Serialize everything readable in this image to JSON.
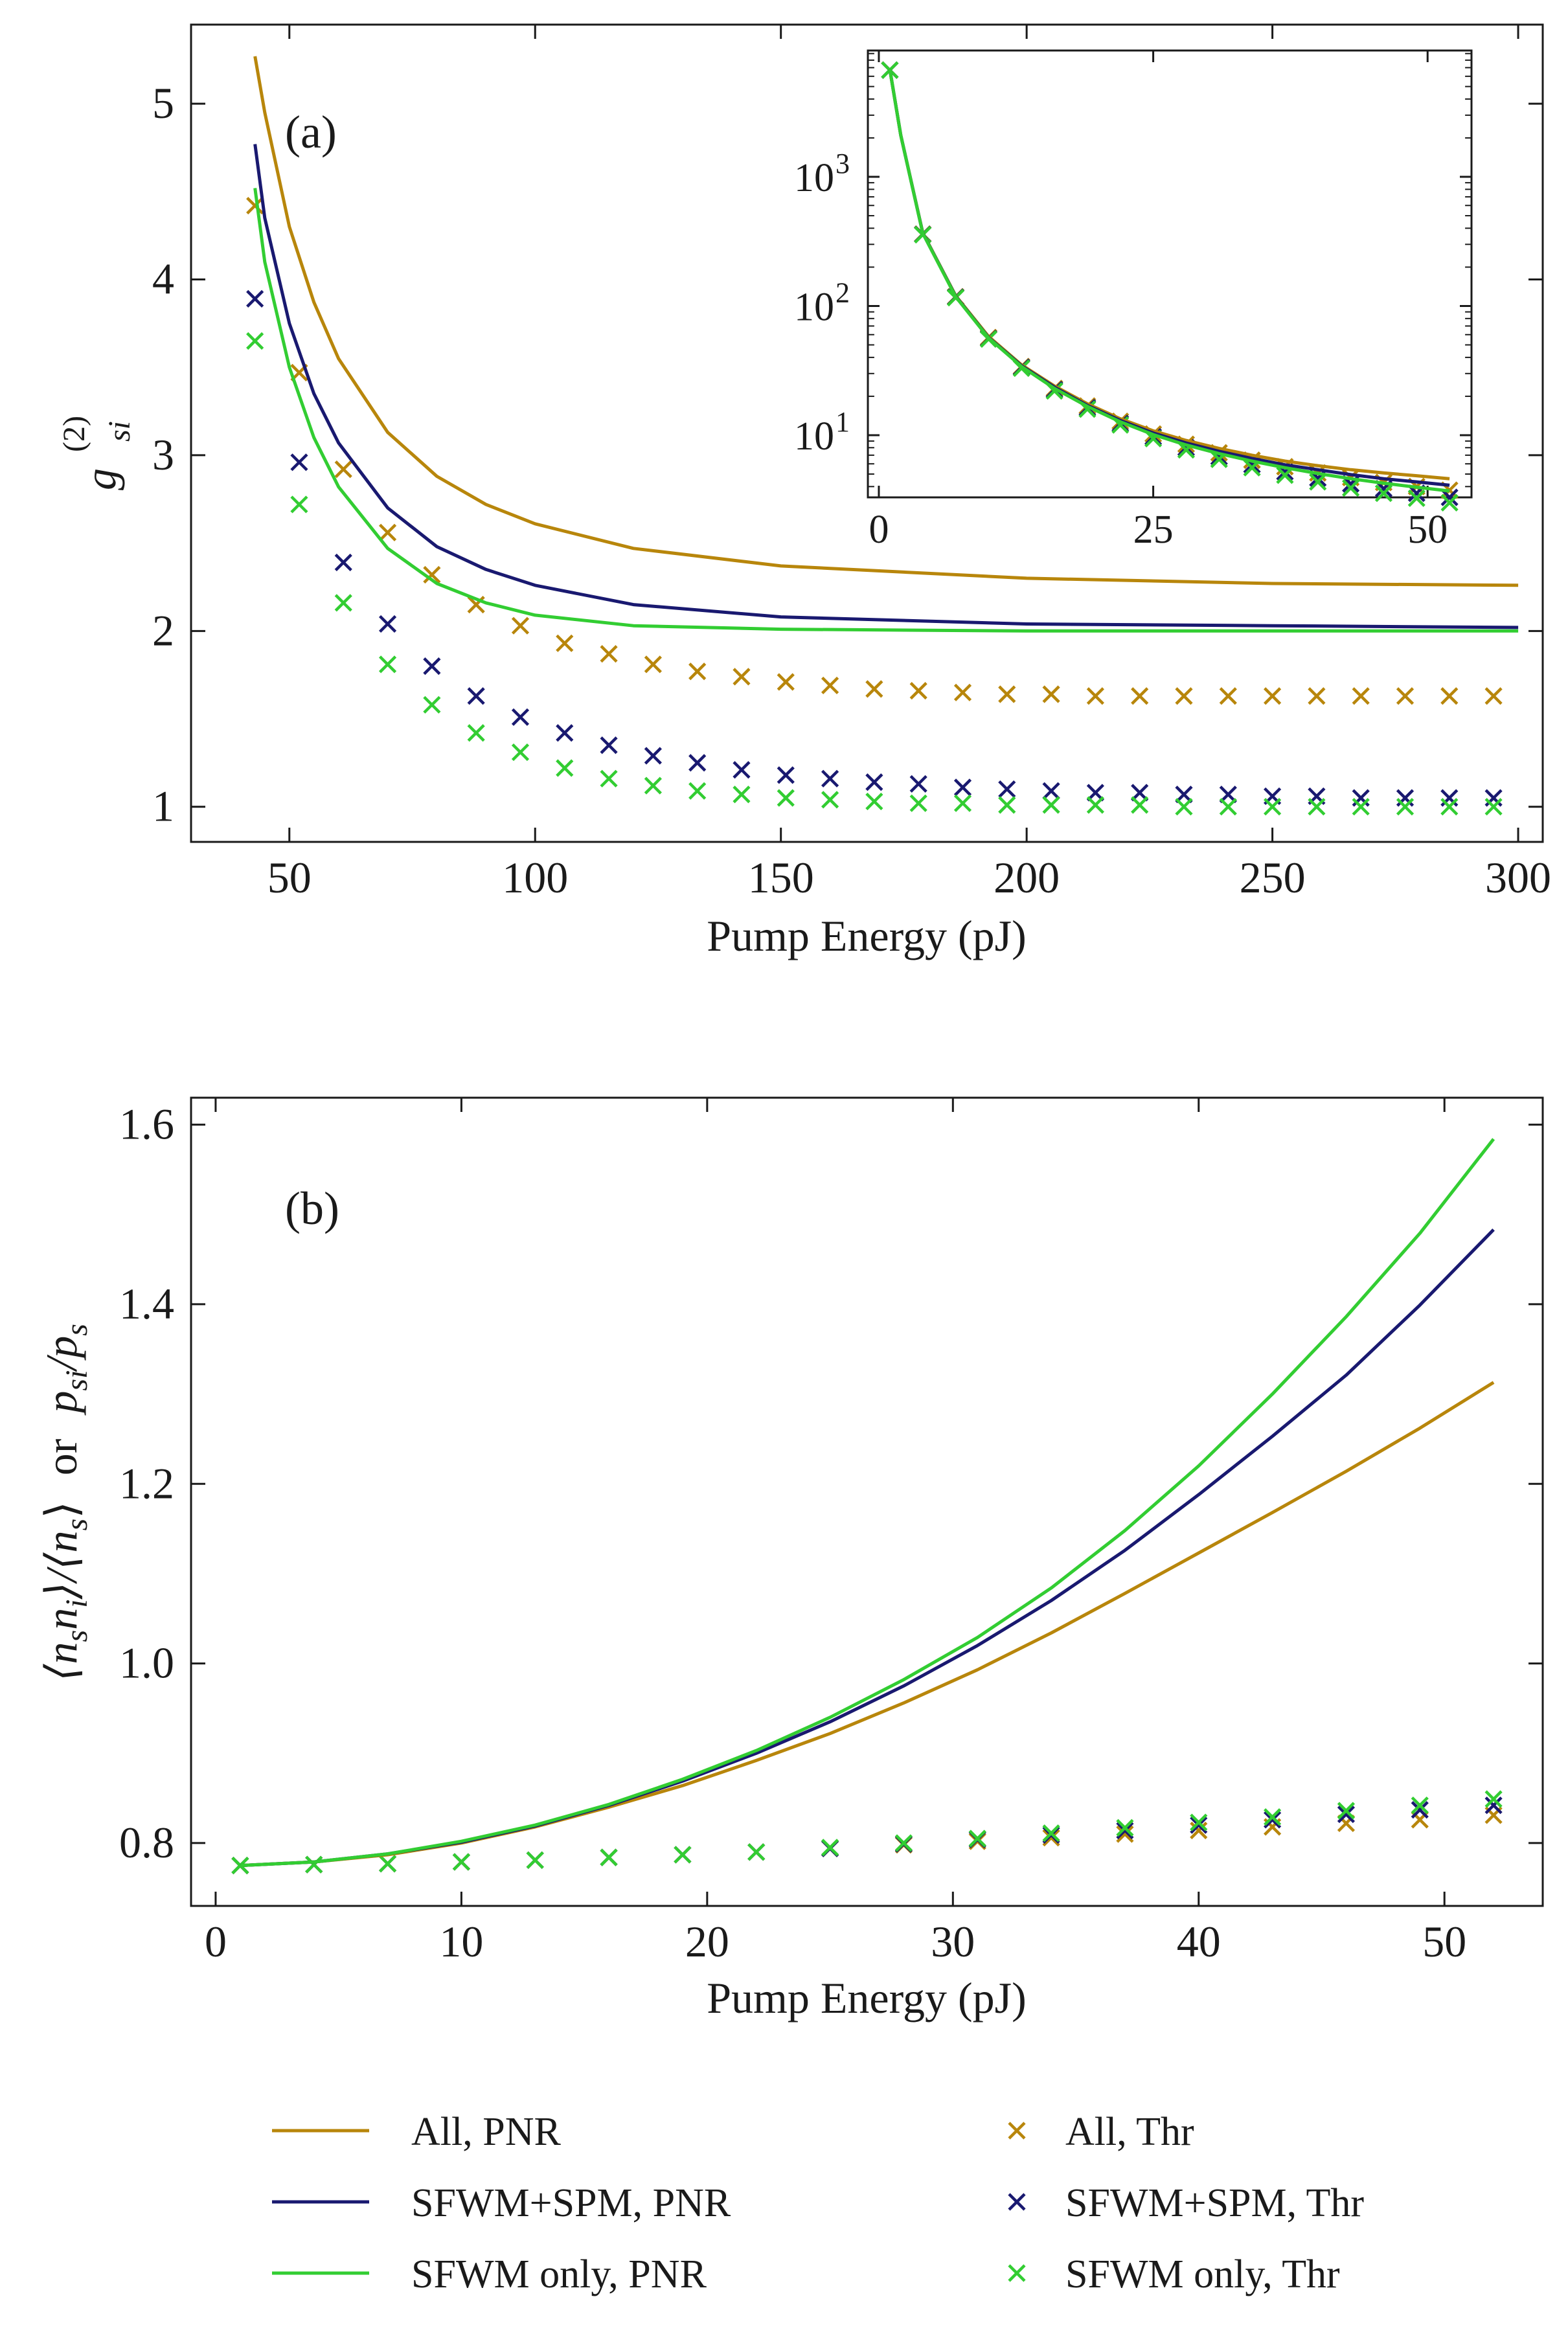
{
  "colors": {
    "all": "#b8860b",
    "sfwm_spm": "#191970",
    "sfwm_only": "#32cd32",
    "axis": "#1a1a1a"
  },
  "chart_data": [
    {
      "id": "a",
      "type": "line",
      "panel_label": "(a)",
      "xlabel": "Pump Energy (pJ)",
      "ylabel": "g_si^(2)",
      "ylabel_main": "g",
      "ylabel_sub": "si",
      "ylabel_sup": "(2)",
      "xlim": [
        30,
        305
      ],
      "ylim": [
        0.8,
        5.45
      ],
      "xticks": [
        50,
        100,
        150,
        200,
        250,
        300
      ],
      "yticks": [
        1,
        2,
        3,
        4,
        5
      ],
      "grid": false,
      "series": [
        {
          "name": "All, PNR",
          "kind": "line",
          "color_key": "all",
          "x": [
            43,
            45,
            50,
            55,
            60,
            70,
            80,
            90,
            100,
            120,
            150,
            200,
            250,
            300
          ],
          "y": [
            5.27,
            4.95,
            4.3,
            3.87,
            3.55,
            3.13,
            2.88,
            2.72,
            2.61,
            2.47,
            2.37,
            2.3,
            2.27,
            2.26
          ]
        },
        {
          "name": "SFWM+SPM, PNR",
          "kind": "line",
          "color_key": "sfwm_spm",
          "x": [
            43,
            45,
            50,
            55,
            60,
            70,
            80,
            90,
            100,
            120,
            150,
            200,
            250,
            300
          ],
          "y": [
            4.77,
            4.35,
            3.75,
            3.35,
            3.07,
            2.7,
            2.48,
            2.35,
            2.26,
            2.15,
            2.08,
            2.04,
            2.03,
            2.02
          ]
        },
        {
          "name": "SFWM only, PNR",
          "kind": "line",
          "color_key": "sfwm_only",
          "x": [
            43,
            45,
            50,
            55,
            60,
            70,
            80,
            90,
            100,
            120,
            150,
            200,
            250,
            300
          ],
          "y": [
            4.52,
            4.1,
            3.5,
            3.1,
            2.82,
            2.47,
            2.27,
            2.16,
            2.09,
            2.03,
            2.01,
            2.0,
            2.0,
            2.0
          ]
        },
        {
          "name": "All, Thr",
          "kind": "marker",
          "color_key": "all",
          "x": [
            43,
            52,
            61,
            70,
            79,
            88,
            97,
            106,
            115,
            124,
            133,
            142,
            151,
            160,
            169,
            178,
            187,
            196,
            205,
            214,
            223,
            232,
            241,
            250,
            259,
            268,
            277,
            286,
            295
          ],
          "y": [
            4.42,
            3.47,
            2.92,
            2.56,
            2.32,
            2.15,
            2.03,
            1.93,
            1.87,
            1.81,
            1.77,
            1.74,
            1.71,
            1.69,
            1.67,
            1.66,
            1.65,
            1.64,
            1.64,
            1.63,
            1.63,
            1.63,
            1.63,
            1.63,
            1.63,
            1.63,
            1.63,
            1.63,
            1.63
          ]
        },
        {
          "name": "SFWM+SPM, Thr",
          "kind": "marker",
          "color_key": "sfwm_spm",
          "x": [
            43,
            52,
            61,
            70,
            79,
            88,
            97,
            106,
            115,
            124,
            133,
            142,
            151,
            160,
            169,
            178,
            187,
            196,
            205,
            214,
            223,
            232,
            241,
            250,
            259,
            268,
            277,
            286,
            295
          ],
          "y": [
            3.89,
            2.96,
            2.39,
            2.04,
            1.8,
            1.63,
            1.51,
            1.42,
            1.35,
            1.29,
            1.25,
            1.21,
            1.18,
            1.16,
            1.14,
            1.13,
            1.11,
            1.1,
            1.09,
            1.08,
            1.08,
            1.07,
            1.07,
            1.06,
            1.06,
            1.05,
            1.05,
            1.05,
            1.05
          ]
        },
        {
          "name": "SFWM only, Thr",
          "kind": "marker",
          "color_key": "sfwm_only",
          "x": [
            43,
            52,
            61,
            70,
            79,
            88,
            97,
            106,
            115,
            124,
            133,
            142,
            151,
            160,
            169,
            178,
            187,
            196,
            205,
            214,
            223,
            232,
            241,
            250,
            259,
            268,
            277,
            286,
            295
          ],
          "y": [
            3.65,
            2.72,
            2.16,
            1.81,
            1.58,
            1.42,
            1.31,
            1.22,
            1.16,
            1.12,
            1.09,
            1.07,
            1.05,
            1.04,
            1.03,
            1.02,
            1.02,
            1.01,
            1.01,
            1.01,
            1.01,
            1.0,
            1.0,
            1.0,
            1.0,
            1.0,
            1.0,
            1.0,
            1.0
          ]
        }
      ]
    },
    {
      "id": "a_inset",
      "type": "line",
      "yscale": "log",
      "xlim": [
        -1,
        54
      ],
      "ylim": [
        3.3,
        9500
      ],
      "xticks": [
        0,
        25,
        50
      ],
      "yticks": [
        10,
        100,
        1000
      ],
      "ytick_labels": [
        "10",
        "10",
        "10"
      ],
      "ytick_exponents": [
        "1",
        "2",
        "3"
      ],
      "series": [
        {
          "name": "All, PNR",
          "kind": "line",
          "color_key": "all",
          "x": [
            1,
            2,
            4,
            7,
            10,
            13,
            16,
            19,
            22,
            25,
            28,
            31,
            34,
            37,
            40,
            43,
            46,
            49,
            52
          ],
          "y": [
            6800,
            2100,
            370,
            120,
            58,
            35,
            24,
            17.5,
            13.4,
            10.8,
            9.1,
            7.9,
            7.0,
            6.3,
            5.8,
            5.4,
            5.1,
            4.85,
            4.6
          ]
        },
        {
          "name": "SFWM+SPM, PNR",
          "kind": "line",
          "color_key": "sfwm_spm",
          "x": [
            1,
            2,
            4,
            7,
            10,
            13,
            16,
            19,
            22,
            25,
            28,
            31,
            34,
            37,
            40,
            43,
            46,
            49,
            52
          ],
          "y": [
            6800,
            2100,
            368,
            119,
            57,
            34.5,
            23.5,
            17,
            13,
            10.4,
            8.7,
            7.5,
            6.6,
            5.9,
            5.4,
            4.95,
            4.6,
            4.35,
            4.1
          ]
        },
        {
          "name": "SFWM only, PNR",
          "kind": "line",
          "color_key": "sfwm_only",
          "x": [
            1,
            2,
            4,
            7,
            10,
            13,
            16,
            19,
            22,
            25,
            28,
            31,
            34,
            37,
            40,
            43,
            46,
            49,
            52
          ],
          "y": [
            6800,
            2100,
            366,
            118,
            56.5,
            34,
            23,
            16.7,
            12.7,
            10.1,
            8.4,
            7.2,
            6.3,
            5.6,
            5.05,
            4.6,
            4.25,
            3.95,
            3.7
          ]
        },
        {
          "name": "All, Thr",
          "kind": "marker",
          "color_key": "all",
          "x": [
            1,
            4,
            7,
            10,
            13,
            16,
            19,
            22,
            25,
            28,
            31,
            34,
            37,
            40,
            43,
            46,
            49,
            52
          ],
          "y": [
            6700,
            360,
            118,
            57,
            34,
            23,
            16.8,
            12.8,
            10.2,
            8.5,
            7.3,
            6.4,
            5.7,
            5.1,
            4.7,
            4.3,
            4.0,
            3.75
          ]
        },
        {
          "name": "SFWM+SPM, Thr",
          "kind": "marker",
          "color_key": "sfwm_spm",
          "x": [
            1,
            4,
            7,
            10,
            13,
            16,
            19,
            22,
            25,
            28,
            31,
            34,
            37,
            40,
            43,
            46,
            49,
            52
          ],
          "y": [
            6700,
            358,
            117,
            56,
            33.5,
            22.5,
            16.3,
            12.3,
            9.7,
            8.0,
            6.8,
            5.9,
            5.2,
            4.65,
            4.2,
            3.85,
            3.55,
            3.3
          ]
        },
        {
          "name": "SFWM only, Thr",
          "kind": "marker",
          "color_key": "sfwm_only",
          "x": [
            1,
            4,
            7,
            10,
            13,
            16,
            19,
            22,
            25,
            28,
            31,
            34,
            37,
            40,
            43,
            46,
            49,
            52
          ],
          "y": [
            6700,
            356,
            116,
            55.5,
            33,
            22,
            15.9,
            12.0,
            9.4,
            7.7,
            6.5,
            5.6,
            4.9,
            4.35,
            3.9,
            3.55,
            3.25,
            3.0
          ]
        }
      ]
    },
    {
      "id": "b",
      "type": "line",
      "panel_label": "(b)",
      "xlabel": "Pump Energy (pJ)",
      "ylabel": "⟨n_s n_i⟩/⟨n_s⟩ or p_si/p_s",
      "ylabel_left": "⟨n",
      "ylabel_sub1": "s",
      "ylabel_mid": "n",
      "ylabel_sub2": "i",
      "ylabel_rest": "⟩/⟨n",
      "ylabel_sub3": "s",
      "ylabel_close": "⟩",
      "ylabel_or": "or",
      "ylabel_p1": "p",
      "ylabel_psub1": "si",
      "ylabel_slash": "/p",
      "ylabel_psub2": "s",
      "xlim": [
        -1,
        54
      ],
      "ylim": [
        0.73,
        1.63
      ],
      "xticks": [
        0,
        10,
        20,
        30,
        40,
        50
      ],
      "yticks": [
        0.8,
        1.0,
        1.2,
        1.4,
        1.6
      ],
      "ytick_labels": [
        "0.8",
        "1.0",
        "1.2",
        "1.4",
        "1.6"
      ],
      "grid": false,
      "series": [
        {
          "name": "All, PNR",
          "kind": "line",
          "color_key": "all",
          "x": [
            1,
            4,
            7,
            10,
            13,
            16,
            19,
            22,
            25,
            28,
            31,
            34,
            37,
            40,
            43,
            46,
            49,
            52
          ],
          "y": [
            0.775,
            0.779,
            0.787,
            0.8,
            0.818,
            0.84,
            0.864,
            0.892,
            0.922,
            0.956,
            0.993,
            1.034,
            1.078,
            1.123,
            1.168,
            1.214,
            1.262,
            1.313
          ]
        },
        {
          "name": "SFWM+SPM, PNR",
          "kind": "line",
          "color_key": "sfwm_spm",
          "x": [
            1,
            4,
            7,
            10,
            13,
            16,
            19,
            22,
            25,
            28,
            31,
            34,
            37,
            40,
            43,
            46,
            49,
            52
          ],
          "y": [
            0.775,
            0.779,
            0.788,
            0.801,
            0.819,
            0.842,
            0.869,
            0.9,
            0.935,
            0.975,
            1.02,
            1.07,
            1.126,
            1.188,
            1.253,
            1.321,
            1.399,
            1.483
          ]
        },
        {
          "name": "SFWM only, PNR",
          "kind": "line",
          "color_key": "sfwm_only",
          "x": [
            1,
            4,
            7,
            10,
            13,
            16,
            19,
            22,
            25,
            28,
            31,
            34,
            37,
            40,
            43,
            46,
            49,
            52
          ],
          "y": [
            0.775,
            0.779,
            0.788,
            0.802,
            0.82,
            0.843,
            0.871,
            0.903,
            0.94,
            0.982,
            1.029,
            1.084,
            1.148,
            1.22,
            1.3,
            1.386,
            1.479,
            1.584
          ]
        },
        {
          "name": "All, Thr",
          "kind": "marker",
          "color_key": "all",
          "x": [
            1,
            4,
            7,
            10,
            13,
            16,
            19,
            22,
            25,
            28,
            31,
            34,
            37,
            40,
            43,
            46,
            49,
            52
          ],
          "y": [
            0.775,
            0.776,
            0.777,
            0.779,
            0.781,
            0.784,
            0.787,
            0.79,
            0.794,
            0.798,
            0.802,
            0.806,
            0.81,
            0.814,
            0.818,
            0.822,
            0.826,
            0.831
          ]
        },
        {
          "name": "SFWM+SPM, Thr",
          "kind": "marker",
          "color_key": "sfwm_spm",
          "x": [
            1,
            4,
            7,
            10,
            13,
            16,
            19,
            22,
            25,
            28,
            31,
            34,
            37,
            40,
            43,
            46,
            49,
            52
          ],
          "y": [
            0.775,
            0.776,
            0.777,
            0.779,
            0.781,
            0.784,
            0.787,
            0.79,
            0.794,
            0.799,
            0.804,
            0.809,
            0.814,
            0.82,
            0.826,
            0.832,
            0.837,
            0.842
          ]
        },
        {
          "name": "SFWM only, Thr",
          "kind": "marker",
          "color_key": "sfwm_only",
          "x": [
            1,
            4,
            7,
            10,
            13,
            16,
            19,
            22,
            25,
            28,
            31,
            34,
            37,
            40,
            43,
            46,
            49,
            52
          ],
          "y": [
            0.775,
            0.776,
            0.777,
            0.779,
            0.781,
            0.784,
            0.787,
            0.79,
            0.795,
            0.8,
            0.805,
            0.811,
            0.817,
            0.823,
            0.829,
            0.836,
            0.842,
            0.849
          ]
        }
      ]
    }
  ],
  "legend": {
    "placement": "bottom",
    "entries": [
      {
        "label": "All, PNR",
        "kind": "line",
        "color_key": "all"
      },
      {
        "label": "SFWM+SPM, PNR",
        "kind": "line",
        "color_key": "sfwm_spm"
      },
      {
        "label": "SFWM only, PNR",
        "kind": "line",
        "color_key": "sfwm_only"
      },
      {
        "label": "All, Thr",
        "kind": "marker",
        "color_key": "all"
      },
      {
        "label": "SFWM+SPM, Thr",
        "kind": "marker",
        "color_key": "sfwm_spm"
      },
      {
        "label": "SFWM only, Thr",
        "kind": "marker",
        "color_key": "sfwm_only"
      }
    ]
  }
}
